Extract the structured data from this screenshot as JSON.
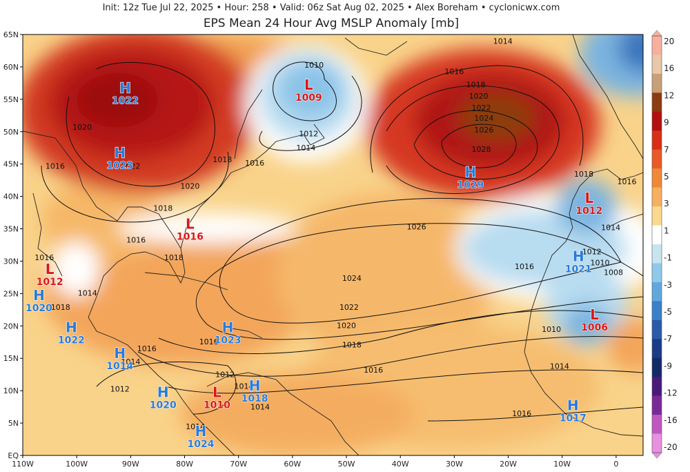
{
  "header": {
    "line1": "Init: 12z Tue Jul 22, 2025  •  Hour: 258  •  Valid: 06z Sat Aug 02, 2025  •  Alex Boreham  •  cyclonicwx.com",
    "title": "EPS Mean 24 Hour Avg MSLP Anomaly [mb]"
  },
  "axes": {
    "lat_labels": [
      "65N",
      "60N",
      "55N",
      "50N",
      "45N",
      "40N",
      "35N",
      "30N",
      "25N",
      "20N",
      "15N",
      "10N",
      "5N",
      "EQ"
    ],
    "lon_labels": [
      "110W",
      "100W",
      "90W",
      "80W",
      "70W",
      "60W",
      "50W",
      "40W",
      "30W",
      "20W",
      "10W",
      "0"
    ]
  },
  "colorbar": {
    "labels": [
      "20",
      "16",
      "12",
      "9",
      "7",
      "5",
      "3",
      "1",
      "-1",
      "-3",
      "-5",
      "-7",
      "-9",
      "-12",
      "-16",
      "-20"
    ],
    "colors": [
      "#f7b0a0",
      "#e8c8a8",
      "#c8a078",
      "#8c3c10",
      "#b01010",
      "#d83018",
      "#e85a28",
      "#f08838",
      "#f5b060",
      "#fad890",
      "#ffffff",
      "#c8e4f0",
      "#90c8ec",
      "#60a8dc",
      "#3a80c8",
      "#2a5aa8",
      "#1a3c88",
      "#142a68",
      "#4a1a78",
      "#7a2a98",
      "#c058c0",
      "#e890e0"
    ]
  },
  "pressure_centers": [
    {
      "type": "H",
      "value": "1022",
      "lon": -91,
      "lat": 56
    },
    {
      "type": "H",
      "value": "1023",
      "lon": -92,
      "lat": 46
    },
    {
      "type": "L",
      "value": "1009",
      "lon": -57,
      "lat": 56.5
    },
    {
      "type": "H",
      "value": "1029",
      "lon": -27,
      "lat": 43
    },
    {
      "type": "L",
      "value": "1012",
      "lon": -5,
      "lat": 39
    },
    {
      "type": "L",
      "value": "1016",
      "lon": -79,
      "lat": 35
    },
    {
      "type": "L",
      "value": "1012",
      "lon": -105,
      "lat": 28
    },
    {
      "type": "H",
      "value": "1020",
      "lon": -107,
      "lat": 24
    },
    {
      "type": "H",
      "value": "1022",
      "lon": -101,
      "lat": 19
    },
    {
      "type": "H",
      "value": "1023",
      "lon": -72,
      "lat": 19
    },
    {
      "type": "H",
      "value": "1014",
      "lon": -92,
      "lat": 15
    },
    {
      "type": "H",
      "value": "1020",
      "lon": -84,
      "lat": 9
    },
    {
      "type": "L",
      "value": "1010",
      "lon": -74,
      "lat": 9
    },
    {
      "type": "H",
      "value": "1018",
      "lon": -67,
      "lat": 10
    },
    {
      "type": "H",
      "value": "1024",
      "lon": -77,
      "lat": 3
    },
    {
      "type": "H",
      "value": "1021",
      "lon": -7,
      "lat": 30
    },
    {
      "type": "L",
      "value": "1006",
      "lon": -4,
      "lat": 21
    },
    {
      "type": "H",
      "value": "1017",
      "lon": -8,
      "lat": 7
    }
  ],
  "isobar_labels": [
    {
      "t": "1014",
      "lon": -21,
      "lat": 64
    },
    {
      "t": "1010",
      "lon": -56,
      "lat": 60.3
    },
    {
      "t": "1016",
      "lon": -30,
      "lat": 59.3
    },
    {
      "t": "1018",
      "lon": -26,
      "lat": 57.3
    },
    {
      "t": "1020",
      "lon": -25.5,
      "lat": 55.5
    },
    {
      "t": "1022",
      "lon": -25,
      "lat": 53.7
    },
    {
      "t": "1024",
      "lon": -24.5,
      "lat": 52.1
    },
    {
      "t": "1026",
      "lon": -24.5,
      "lat": 50.3
    },
    {
      "t": "1028",
      "lon": -25,
      "lat": 47.3
    },
    {
      "t": "1012",
      "lon": -57,
      "lat": 49.7
    },
    {
      "t": "1014",
      "lon": -57.5,
      "lat": 47.5
    },
    {
      "t": "1016",
      "lon": -67,
      "lat": 45.2
    },
    {
      "t": "1018",
      "lon": -73,
      "lat": 45.7
    },
    {
      "t": "1020",
      "lon": -99,
      "lat": 50.7
    },
    {
      "t": "1016",
      "lon": -104,
      "lat": 44.7
    },
    {
      "t": "1022",
      "lon": -90,
      "lat": 44.7
    },
    {
      "t": "1020",
      "lon": -79,
      "lat": 41.6
    },
    {
      "t": "1018",
      "lon": -84,
      "lat": 38.2
    },
    {
      "t": "1026",
      "lon": -37,
      "lat": 35.3
    },
    {
      "t": "1018",
      "lon": -6,
      "lat": 43.5
    },
    {
      "t": "1016",
      "lon": 2,
      "lat": 42.3
    },
    {
      "t": "1014",
      "lon": -1,
      "lat": 35.2
    },
    {
      "t": "1012",
      "lon": -4.5,
      "lat": 31.5
    },
    {
      "t": "1010",
      "lon": -3,
      "lat": 29.8
    },
    {
      "t": "1008",
      "lon": -0.5,
      "lat": 28.3
    },
    {
      "t": "1016",
      "lon": -17,
      "lat": 29.2
    },
    {
      "t": "1016",
      "lon": -89,
      "lat": 33.3
    },
    {
      "t": "1018",
      "lon": -82,
      "lat": 30.6
    },
    {
      "t": "1016",
      "lon": -106,
      "lat": 30.6
    },
    {
      "t": "1014",
      "lon": -98,
      "lat": 25.1
    },
    {
      "t": "1018",
      "lon": -103,
      "lat": 22.9
    },
    {
      "t": "1024",
      "lon": -49,
      "lat": 27.4
    },
    {
      "t": "1022",
      "lon": -49.5,
      "lat": 22.9
    },
    {
      "t": "1020",
      "lon": -50,
      "lat": 20.1
    },
    {
      "t": "1018",
      "lon": -49,
      "lat": 17.1
    },
    {
      "t": "1016",
      "lon": -45,
      "lat": 13.2
    },
    {
      "t": "1016",
      "lon": -75.5,
      "lat": 17.6
    },
    {
      "t": "1016",
      "lon": -87,
      "lat": 16.5
    },
    {
      "t": "1014",
      "lon": -90,
      "lat": 14.5
    },
    {
      "t": "1012",
      "lon": -92,
      "lat": 10.3
    },
    {
      "t": "1012",
      "lon": -72.5,
      "lat": 12.5
    },
    {
      "t": "1014",
      "lon": -69,
      "lat": 10.7
    },
    {
      "t": "1014",
      "lon": -66,
      "lat": 7.5
    },
    {
      "t": "1014",
      "lon": -78,
      "lat": 4.5
    },
    {
      "t": "1010",
      "lon": -12,
      "lat": 19.5
    },
    {
      "t": "1014",
      "lon": -10.5,
      "lat": 13.8
    },
    {
      "t": "1016",
      "lon": -17.5,
      "lat": 6.5
    }
  ]
}
